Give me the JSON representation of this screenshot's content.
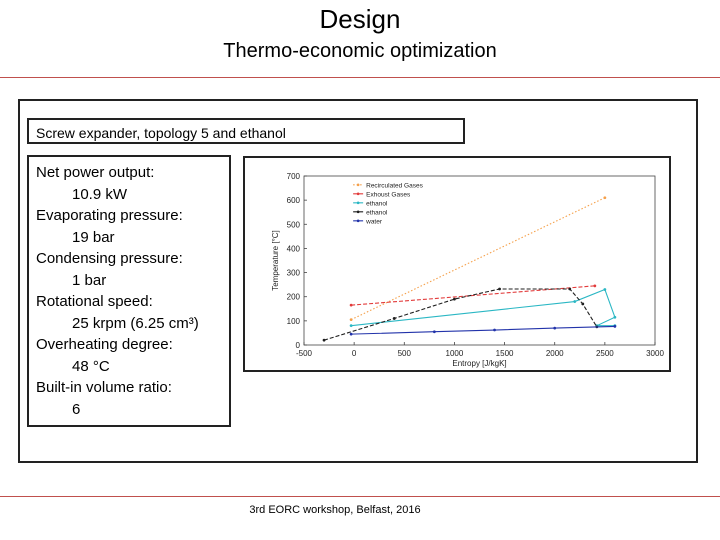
{
  "header": {
    "title": "Design",
    "subtitle": "Thermo-economic optimization"
  },
  "caption": "Screw expander, topology 5 and ethanol",
  "params": [
    {
      "label": "Net power output:",
      "value": "10.9 kW"
    },
    {
      "label": "Evaporating pressure:",
      "value": "19 bar"
    },
    {
      "label": "Condensing pressure:",
      "value": "1 bar"
    },
    {
      "label": "Rotational speed:",
      "value": "25 krpm (6.25 cm³)"
    },
    {
      "label": "Overheating degree:",
      "value": "48 °C"
    },
    {
      "label": "Built-in volume ratio:",
      "value": "6"
    }
  ],
  "footer": "3rd EORC workshop, Belfast, 2016",
  "chart_data": {
    "type": "line",
    "xlabel": "Entropy [J/kgK]",
    "ylabel": "Temperature [°C]",
    "xlim": [
      -500,
      3000
    ],
    "ylim": [
      0,
      700
    ],
    "xticks": [
      "-500",
      "0",
      "500",
      "1000",
      "1500",
      "2000",
      "2500",
      "3000"
    ],
    "yticks": [
      "0",
      "100",
      "200",
      "300",
      "400",
      "500",
      "600",
      "700"
    ],
    "grid": false,
    "legend": "top-left",
    "series": [
      {
        "name": "Recirculated Gases",
        "color": "#f5a04a",
        "dash": "dot",
        "x": [
          -30,
          2500
        ],
        "y": [
          105,
          610
        ]
      },
      {
        "name": "Exhoust Gases",
        "color": "#e23b3b",
        "dash": "dash",
        "x": [
          -30,
          2400
        ],
        "y": [
          165,
          245
        ]
      },
      {
        "name": "ethanol",
        "color": "#2ab7c4",
        "dash": "solid",
        "x": [
          -30,
          2200,
          2500,
          2600,
          2420,
          2600
        ],
        "y": [
          80,
          180,
          230,
          115,
          80,
          80
        ]
      },
      {
        "name": "ethanol",
        "color": "#1f1f1f",
        "dash": "dash",
        "x": [
          -300,
          400,
          1000,
          1450,
          2150,
          2280,
          2420
        ],
        "y": [
          20,
          110,
          190,
          232,
          232,
          170,
          75
        ]
      },
      {
        "name": "water",
        "color": "#2233aa",
        "dash": "solid",
        "x": [
          -30,
          800,
          1400,
          2000,
          2600
        ],
        "y": [
          45,
          55,
          62,
          70,
          77
        ]
      }
    ]
  }
}
